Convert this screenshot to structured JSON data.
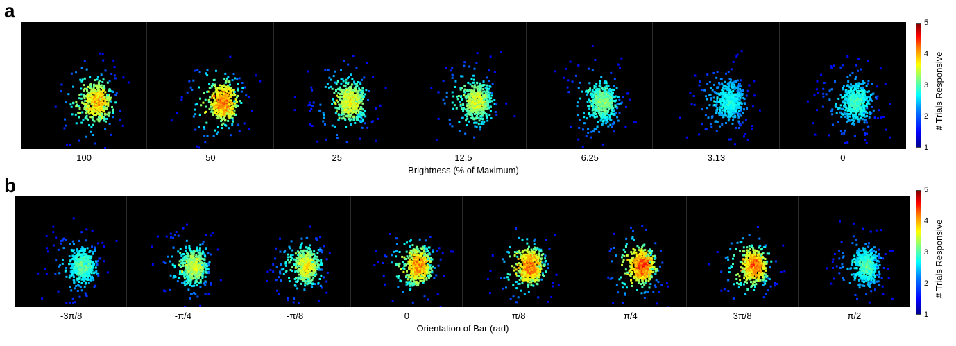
{
  "chart_data": [
    {
      "type": "heatmap",
      "panel": "a",
      "xlabel": "Brightness (% of Maximum)",
      "categories": [
        "100",
        "50",
        "25",
        "12.5",
        "6.25",
        "3.13",
        "0"
      ],
      "peak_values": [
        4.2,
        4.5,
        3.8,
        3.6,
        3.2,
        2.6,
        2.8
      ],
      "colorbar": {
        "label": "# Trials Responsive",
        "min": 1,
        "max": 5,
        "ticks": [
          "5",
          "4",
          "3",
          "2",
          "1"
        ],
        "colormap": "jet"
      }
    },
    {
      "type": "heatmap",
      "panel": "b",
      "xlabel": "Orientation of Bar (rad)",
      "categories": [
        "-3π/8",
        "-π/4",
        "-π/8",
        "0",
        "π/8",
        "π/4",
        "3π/8",
        "π/2"
      ],
      "peak_values": [
        3.0,
        3.6,
        3.8,
        4.4,
        4.6,
        4.8,
        4.6,
        2.9
      ],
      "colorbar": {
        "label": "# Trials Responsive",
        "min": 1,
        "max": 5,
        "ticks": [
          "5",
          "4",
          "3",
          "2",
          "1"
        ],
        "colormap": "jet"
      }
    }
  ]
}
